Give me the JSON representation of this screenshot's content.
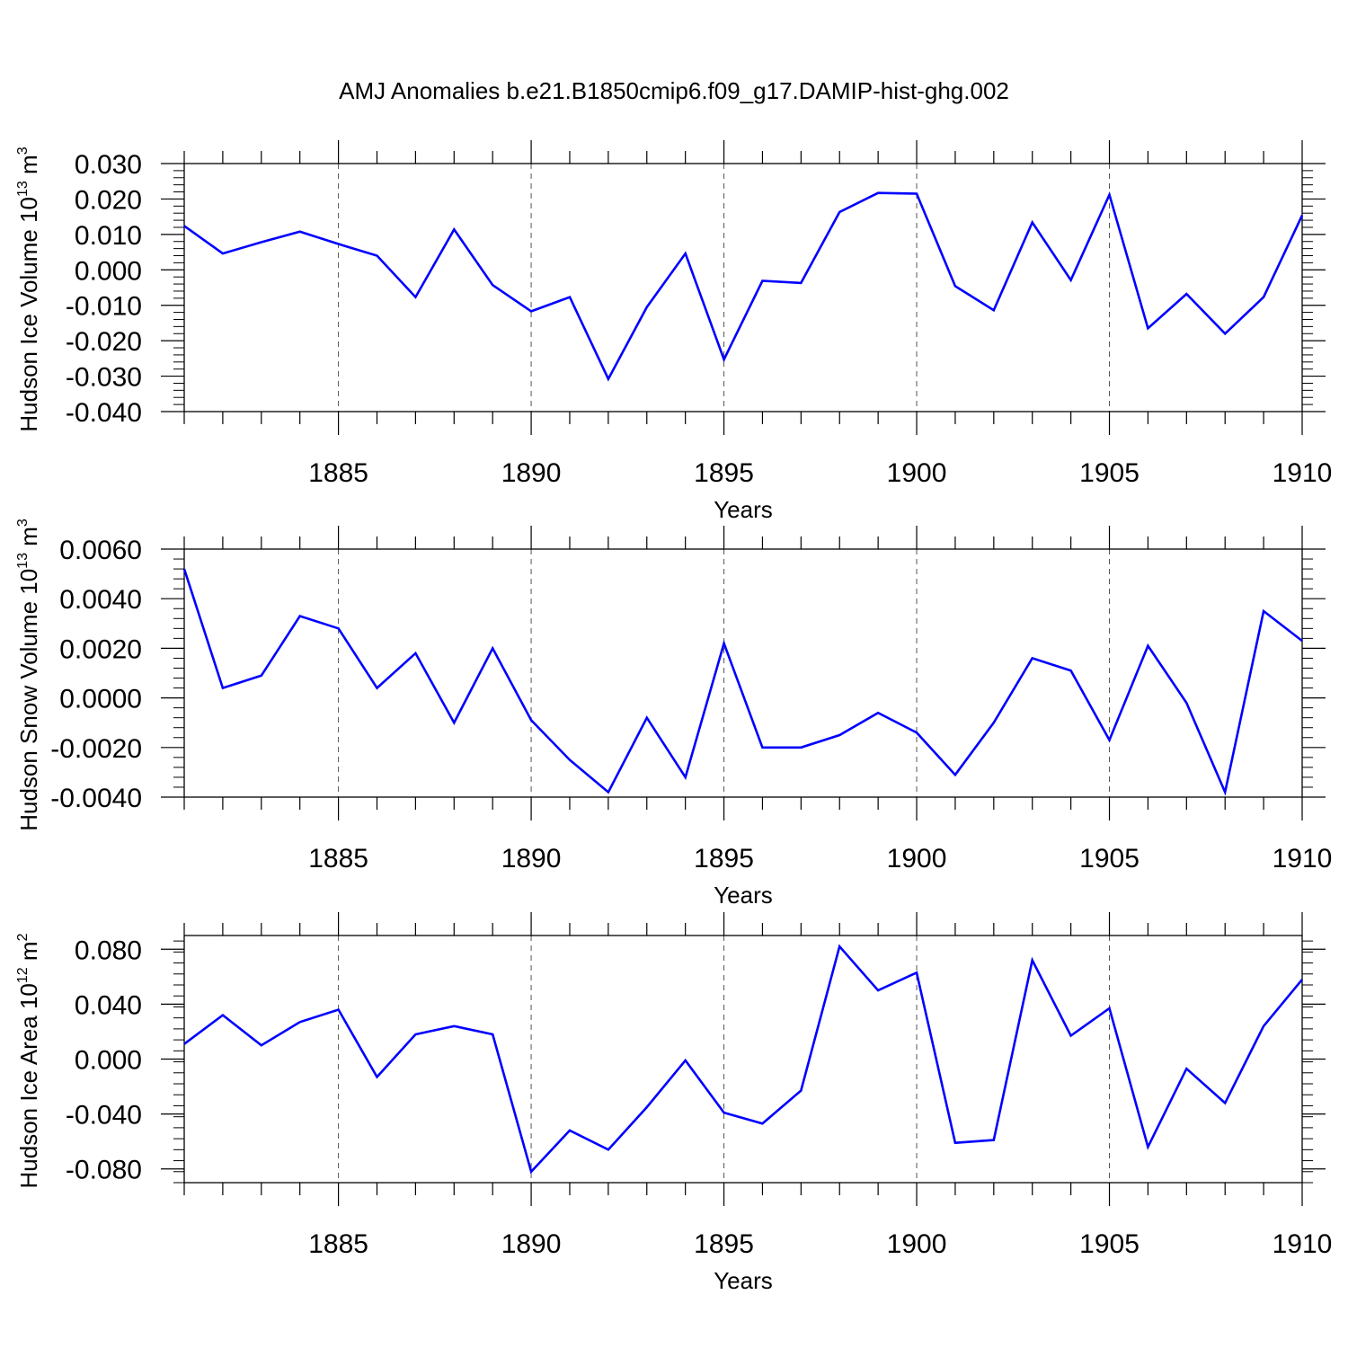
{
  "title": "AMJ Anomalies b.e21.B1850cmip6.f09_g17.DAMIP-hist-ghg.002",
  "line_color": "#0000ff",
  "chart_data": [
    {
      "type": "line",
      "ylabel": {
        "main": "Hudson Ice Volume 10",
        "exp": "13",
        "unit": " m",
        "unit_exp": "3"
      },
      "xlabel": "Years",
      "xlim": [
        1881,
        1910
      ],
      "ylim": [
        -0.04,
        0.03
      ],
      "xticks": [
        1885,
        1890,
        1895,
        1900,
        1905,
        1910
      ],
      "xtick_labels": [
        "1885",
        "1890",
        "1895",
        "1900",
        "1905",
        "1910"
      ],
      "yticks": [
        -0.04,
        -0.03,
        -0.02,
        -0.01,
        0.0,
        0.01,
        0.02,
        0.03
      ],
      "ytick_labels": [
        "-0.040",
        "-0.030",
        "-0.020",
        "-0.010",
        "0.000",
        "0.010",
        "0.020",
        "0.030"
      ],
      "grid": "vertical dashed at major x ticks",
      "x": [
        1881,
        1882,
        1883,
        1884,
        1885,
        1886,
        1887,
        1888,
        1889,
        1890,
        1891,
        1892,
        1893,
        1894,
        1895,
        1896,
        1897,
        1898,
        1899,
        1900,
        1901,
        1902,
        1903,
        1904,
        1905,
        1906,
        1907,
        1908,
        1909,
        1910
      ],
      "values": [
        0.0124,
        0.0046,
        0.0078,
        0.0108,
        0.0073,
        0.004,
        -0.0077,
        0.0114,
        -0.0043,
        -0.0117,
        -0.0077,
        -0.0308,
        -0.0105,
        0.0046,
        -0.0253,
        -0.0031,
        -0.0037,
        0.0163,
        0.0217,
        0.0215,
        -0.0046,
        -0.0114,
        0.0134,
        -0.0029,
        0.0212,
        -0.0165,
        -0.0068,
        -0.018,
        -0.0077,
        0.0154
      ]
    },
    {
      "type": "line",
      "ylabel": {
        "main": "Hudson Snow Volume 10",
        "exp": "13",
        "unit": " m",
        "unit_exp": "3"
      },
      "xlabel": "Years",
      "xlim": [
        1881,
        1910
      ],
      "ylim": [
        -0.004,
        0.006
      ],
      "xticks": [
        1885,
        1890,
        1895,
        1900,
        1905,
        1910
      ],
      "xtick_labels": [
        "1885",
        "1890",
        "1895",
        "1900",
        "1905",
        "1910"
      ],
      "yticks": [
        -0.004,
        -0.002,
        0.0,
        0.002,
        0.004,
        0.006
      ],
      "ytick_labels": [
        "-0.0040",
        "-0.0020",
        "0.0000",
        "0.0020",
        "0.0040",
        "0.0060"
      ],
      "grid": "vertical dashed at major x ticks",
      "x": [
        1881,
        1882,
        1883,
        1884,
        1885,
        1886,
        1887,
        1888,
        1889,
        1890,
        1891,
        1892,
        1893,
        1894,
        1895,
        1896,
        1897,
        1898,
        1899,
        1900,
        1901,
        1902,
        1903,
        1904,
        1905,
        1906,
        1907,
        1908,
        1909,
        1910
      ],
      "values": [
        0.0052,
        0.0004,
        0.0009,
        0.0033,
        0.0028,
        0.0004,
        0.0018,
        -0.001,
        0.002,
        -0.0009,
        -0.0025,
        -0.0038,
        -0.0008,
        -0.0032,
        0.0022,
        -0.002,
        -0.002,
        -0.0015,
        -0.0006,
        -0.0014,
        -0.0031,
        -0.001,
        0.0016,
        0.0011,
        -0.0017,
        0.0021,
        -0.0002,
        -0.0038,
        0.0035,
        0.0023
      ]
    },
    {
      "type": "line",
      "ylabel": {
        "main": "Hudson Ice Area 10",
        "exp": "12",
        "unit": " m",
        "unit_exp": "2"
      },
      "xlabel": "Years",
      "xlim": [
        1881,
        1910
      ],
      "ylim": [
        -0.09,
        0.09
      ],
      "xticks": [
        1885,
        1890,
        1895,
        1900,
        1905,
        1910
      ],
      "xtick_labels": [
        "1885",
        "1890",
        "1895",
        "1900",
        "1905",
        "1910"
      ],
      "yticks": [
        -0.08,
        -0.04,
        0.0,
        0.04,
        0.08
      ],
      "ytick_labels": [
        "-0.080",
        "-0.040",
        "0.000",
        "0.040",
        "0.080"
      ],
      "grid": "vertical dashed at major x ticks",
      "x": [
        1881,
        1882,
        1883,
        1884,
        1885,
        1886,
        1887,
        1888,
        1889,
        1890,
        1891,
        1892,
        1893,
        1894,
        1895,
        1896,
        1897,
        1898,
        1899,
        1900,
        1901,
        1902,
        1903,
        1904,
        1905,
        1906,
        1907,
        1908,
        1909,
        1910
      ],
      "values": [
        0.011,
        0.032,
        0.01,
        0.027,
        0.036,
        -0.013,
        0.018,
        0.024,
        0.018,
        -0.082,
        -0.052,
        -0.066,
        -0.035,
        -0.001,
        -0.039,
        -0.047,
        -0.023,
        0.082,
        0.05,
        0.063,
        -0.061,
        -0.059,
        0.072,
        0.017,
        0.037,
        -0.064,
        -0.007,
        -0.032,
        0.024,
        0.058
      ]
    }
  ]
}
